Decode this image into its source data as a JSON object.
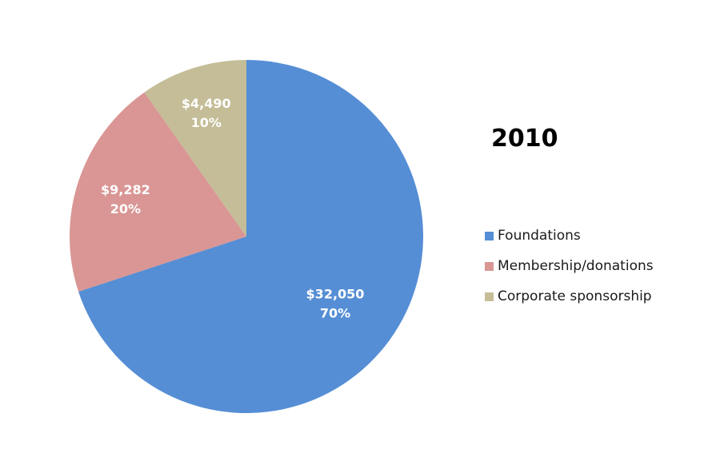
{
  "chart_data": {
    "type": "pie",
    "title": "2010",
    "legend_position": "right",
    "slices": [
      {
        "name": "Foundations",
        "value": 32050,
        "value_label": "$32,050",
        "percent_label": "70%",
        "color": "#558ED5"
      },
      {
        "name": "Membership/donations",
        "value": 9282,
        "value_label": "$9,282",
        "percent_label": "20%",
        "color": "#D99694"
      },
      {
        "name": "Corporate sponsorship",
        "value": 4490,
        "value_label": "$4,490",
        "percent_label": "10%",
        "color": "#C4BD97"
      }
    ]
  }
}
